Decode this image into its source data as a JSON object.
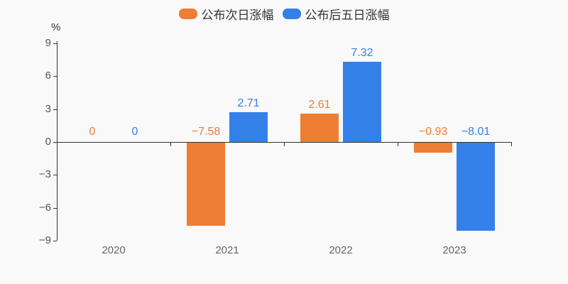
{
  "chart_data": {
    "type": "bar",
    "title": "",
    "categories": [
      "2020",
      "2021",
      "2022",
      "2023"
    ],
    "series": [
      {
        "name": "公布次日涨幅",
        "color": "#ee7e33",
        "values": [
          0,
          -7.58,
          2.61,
          -0.93
        ],
        "labels": [
          "0",
          "−7.58",
          "2.61",
          "−0.93"
        ]
      },
      {
        "name": "公布后五日涨幅",
        "color": "#3381e8",
        "values": [
          0,
          2.71,
          7.32,
          -8.01
        ],
        "labels": [
          "0",
          "2.71",
          "7.32",
          "−8.01"
        ]
      }
    ],
    "xlabel": "",
    "ylabel": "%",
    "ylim": [
      -9,
      9
    ],
    "yticks": [
      9,
      6,
      3,
      0,
      -3,
      -6,
      -9
    ],
    "grid": false,
    "legend_position": "top"
  },
  "colors": {
    "background": "#f9f9f9",
    "axis": "#333333",
    "y_tick_label": "#555555",
    "x_category_label": "#666666",
    "legend_text": "#333333"
  }
}
